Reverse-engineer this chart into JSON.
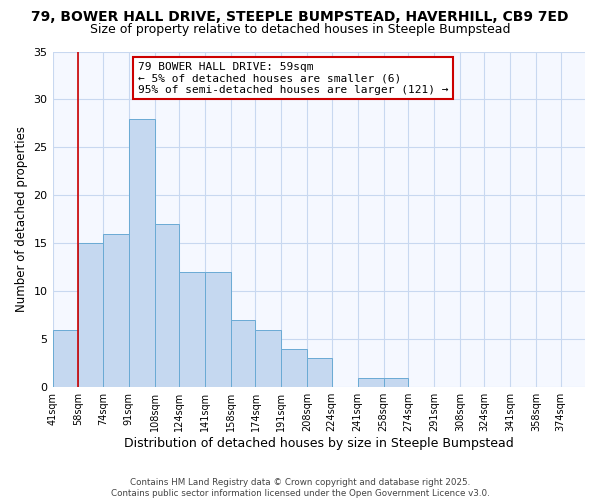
{
  "title": "79, BOWER HALL DRIVE, STEEPLE BUMPSTEAD, HAVERHILL, CB9 7ED",
  "subtitle": "Size of property relative to detached houses in Steeple Bumpstead",
  "xlabel": "Distribution of detached houses by size in Steeple Bumpstead",
  "ylabel": "Number of detached properties",
  "bin_edges": [
    41,
    58,
    74,
    91,
    108,
    124,
    141,
    158,
    174,
    191,
    208,
    224,
    241,
    258,
    274,
    291,
    308,
    324,
    341,
    358,
    374
  ],
  "counts": [
    6,
    15,
    16,
    28,
    17,
    12,
    12,
    7,
    6,
    4,
    3,
    0,
    1,
    1,
    0,
    0,
    0,
    0,
    0,
    0
  ],
  "bar_color": "#c5d8f0",
  "bar_edge_color": "#6aaad4",
  "annotation_vline_x": 58,
  "annotation_text_line1": "79 BOWER HALL DRIVE: 59sqm",
  "annotation_text_line2": "← 5% of detached houses are smaller (6)",
  "annotation_text_line3": "95% of semi-detached houses are larger (121) →",
  "annotation_box_facecolor": "#ffffff",
  "annotation_box_edgecolor": "#cc0000",
  "vline_color": "#cc0000",
  "ylim": [
    0,
    35
  ],
  "yticks": [
    0,
    5,
    10,
    15,
    20,
    25,
    30,
    35
  ],
  "background_color": "#ffffff",
  "plot_bg_color": "#f5f8ff",
  "grid_color": "#c8d8f0",
  "title_fontsize": 10,
  "subtitle_fontsize": 9,
  "ylabel_fontsize": 8.5,
  "xlabel_fontsize": 9,
  "tick_fontsize": 7,
  "footer_line1": "Contains HM Land Registry data © Crown copyright and database right 2025.",
  "footer_line2": "Contains public sector information licensed under the Open Government Licence v3.0."
}
